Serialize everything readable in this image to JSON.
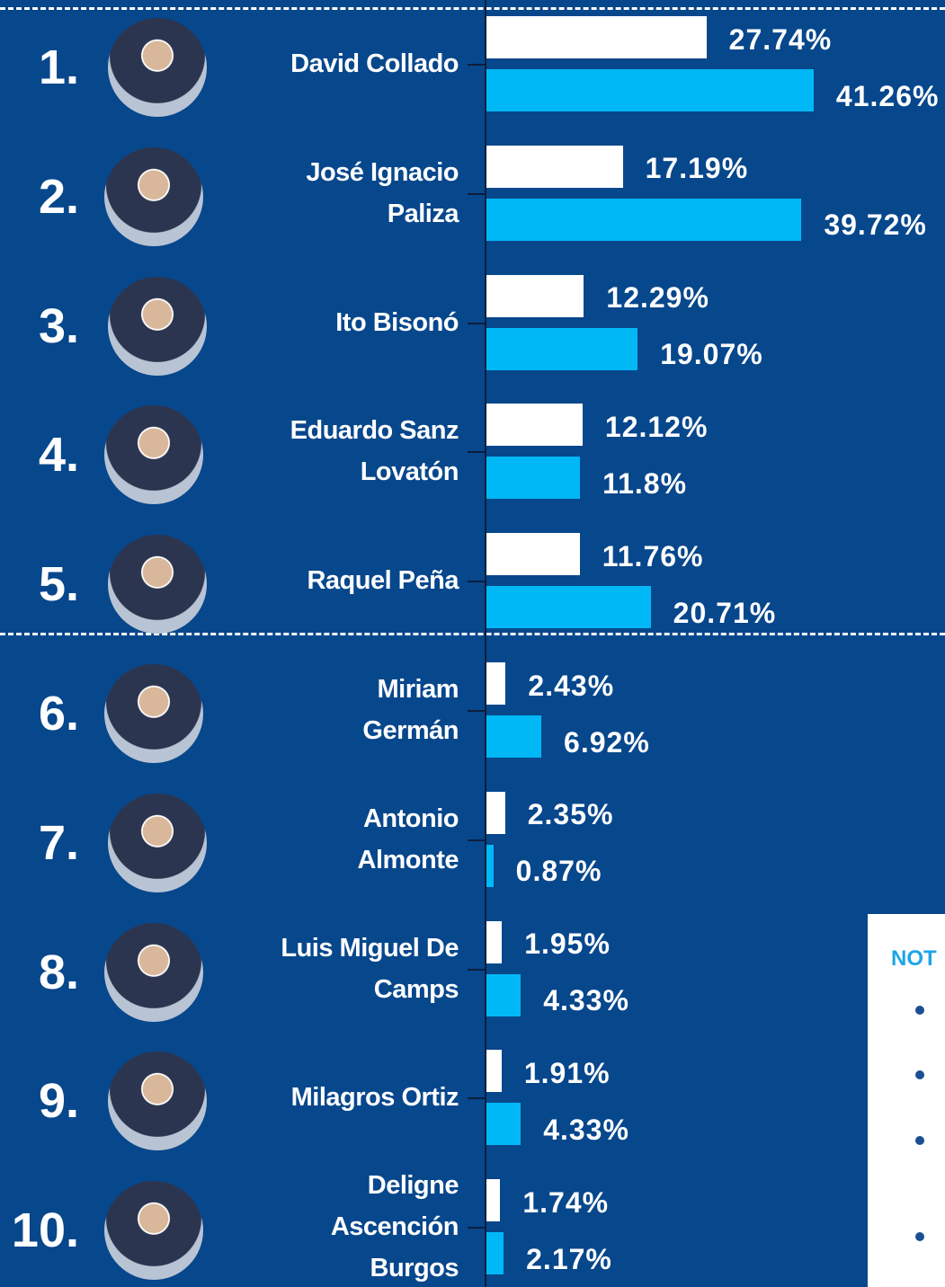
{
  "chart_data": {
    "type": "bar",
    "orientation": "horizontal",
    "ranks": [
      "1.",
      "2.",
      "3.",
      "4.",
      "5.",
      "6.",
      "7.",
      "8.",
      "9.",
      "10."
    ],
    "categories": [
      "David Collado",
      "José Ignacio\nPaliza",
      "Ito Bisonó",
      "Eduardo Sanz\nLovatón",
      "Raquel Peña",
      "Miriam\nGermán",
      "Antonio\nAlmonte",
      "Luis Miguel De\nCamps",
      "Milagros Ortiz",
      "Deligne\nAscención\nBurgos"
    ],
    "series": [
      {
        "color": "#ffffff",
        "values": [
          27.74,
          17.19,
          12.29,
          12.12,
          11.76,
          2.43,
          2.35,
          1.95,
          1.91,
          1.74
        ],
        "value_labels": [
          "27.74%",
          "17.19%",
          "12.29%",
          "12.12%",
          "11.76%",
          "2.43%",
          "2.35%",
          "1.95%",
          "1.91%",
          "1.74%"
        ]
      },
      {
        "color": "#00b8f5",
        "values": [
          41.26,
          39.72,
          19.07,
          11.8,
          20.71,
          6.92,
          0.87,
          4.33,
          4.33,
          2.17
        ],
        "value_labels": [
          "41.26%",
          "39.72%",
          "19.07%",
          "11.8%",
          "20.71%",
          "6.92%",
          "0.87%",
          "4.33%",
          "4.33%",
          "2.17%"
        ]
      }
    ],
    "note_title": "NOT"
  }
}
